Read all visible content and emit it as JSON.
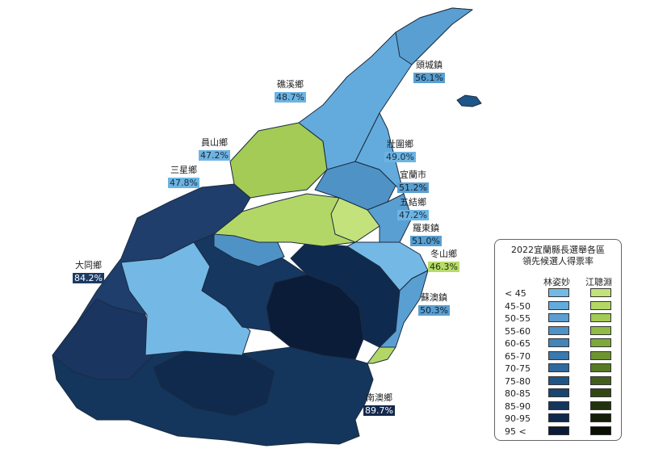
{
  "legend": {
    "title_line1": "2022宜蘭縣長選舉各區",
    "title_line2": "領先候選人得票率",
    "candidate_blue": "林姿妙",
    "candidate_green": "江聰淵",
    "ranges": [
      "< 45",
      "45-50",
      "50-55",
      "55-60",
      "60-65",
      "65-70",
      "70-75",
      "75-80",
      "80-85",
      "85-90",
      "90-95",
      "95 <"
    ],
    "blue_colors": [
      "#74b9e6",
      "#63abdc",
      "#5a9fd2",
      "#4f92c6",
      "#4484b9",
      "#3a78ad",
      "#2f6a9e",
      "#1f5688",
      "#194571",
      "#14365d",
      "#102a4d",
      "#0b1c38"
    ],
    "green_colors": [
      "#c4e27b",
      "#b3d766",
      "#a3cb55",
      "#90bb46",
      "#7ea73a",
      "#6c9330",
      "#577a26",
      "#435f1d",
      "#334715",
      "#23320e",
      "#151e08",
      "#0a0f04"
    ]
  },
  "townships": [
    {
      "name": "頭城鎮",
      "pct": "56.1%",
      "leader": "林姿妙"
    },
    {
      "name": "礁溪鄉",
      "pct": "48.7%",
      "leader": "林姿妙"
    },
    {
      "name": "員山鄉",
      "pct": "47.2%",
      "leader": "林姿妙"
    },
    {
      "name": "三星鄉",
      "pct": "47.8%",
      "leader": "林姿妙"
    },
    {
      "name": "壯圍鄉",
      "pct": "49.0%",
      "leader": "林姿妙"
    },
    {
      "name": "宜蘭市",
      "pct": "51.2%",
      "leader": "林姿妙"
    },
    {
      "name": "五結鄉",
      "pct": "47.2%",
      "leader": "林姿妙"
    },
    {
      "name": "羅東鎮",
      "pct": "51.0%",
      "leader": "林姿妙"
    },
    {
      "name": "冬山鄉",
      "pct": "46.3%",
      "leader": "江聰淵"
    },
    {
      "name": "蘇澳鎮",
      "pct": "50.3%",
      "leader": "林姿妙"
    },
    {
      "name": "大同鄉",
      "pct": "84.2%",
      "leader": "林姿妙"
    },
    {
      "name": "南澳鄉",
      "pct": "89.7%",
      "leader": "林姿妙"
    }
  ]
}
